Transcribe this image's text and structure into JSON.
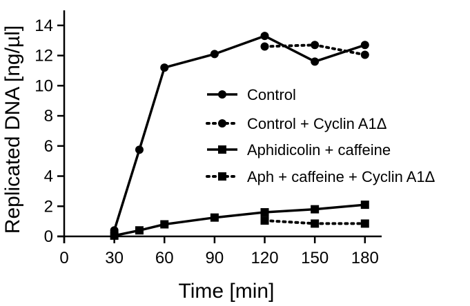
{
  "chart_data": {
    "type": "line",
    "title": "",
    "xlabel": "Time [min]",
    "ylabel": "Replicated DNA [ng/µl]",
    "xlim": [
      0,
      190
    ],
    "ylim": [
      0,
      15
    ],
    "xticks": [
      0,
      30,
      60,
      90,
      120,
      150,
      180
    ],
    "yticks": [
      0,
      2,
      4,
      6,
      8,
      10,
      12,
      14
    ],
    "grid": false,
    "legend_position": "center-right",
    "series": [
      {
        "name": "Control",
        "marker": "circle",
        "line": "solid",
        "x": [
          30,
          45,
          60,
          90,
          120,
          150,
          180
        ],
        "y": [
          0.4,
          5.75,
          11.2,
          12.1,
          13.3,
          11.6,
          12.7
        ]
      },
      {
        "name": "Control + Cyclin A1Δ",
        "marker": "circle",
        "line": "dotted",
        "x": [
          120,
          150,
          180
        ],
        "y": [
          12.6,
          12.7,
          12.05
        ]
      },
      {
        "name": "Aphidicolin + caffeine",
        "marker": "square",
        "line": "solid",
        "x": [
          30,
          45,
          60,
          90,
          120,
          150,
          180
        ],
        "y": [
          0.05,
          0.4,
          0.8,
          1.25,
          1.6,
          1.8,
          2.1
        ]
      },
      {
        "name": "Aph + caffeine + Cyclin A1Δ",
        "marker": "square",
        "line": "dotted",
        "x": [
          120,
          150,
          180
        ],
        "y": [
          1.05,
          0.85,
          0.85
        ]
      }
    ]
  }
}
